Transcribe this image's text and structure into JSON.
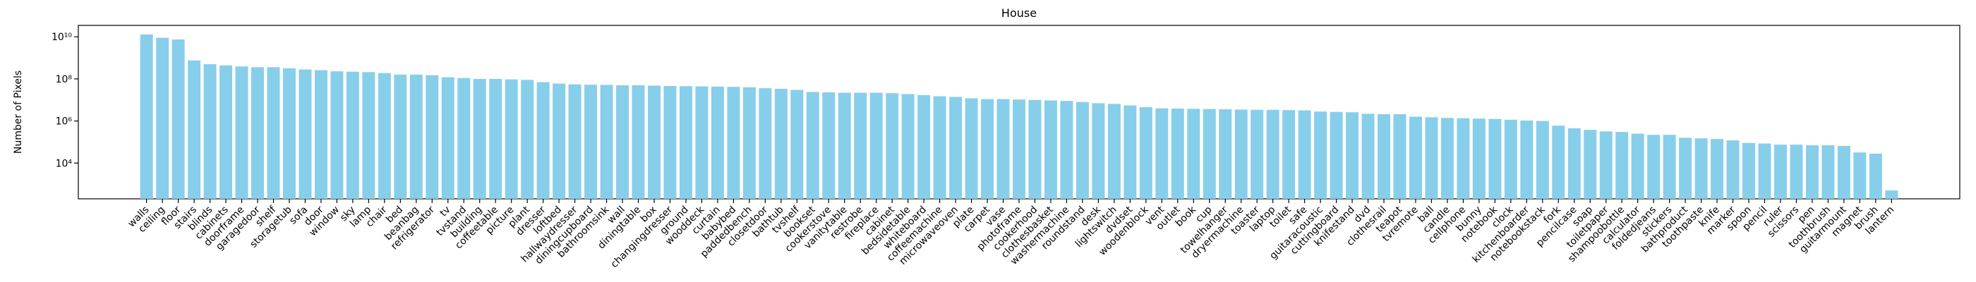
{
  "chart_data": {
    "type": "bar",
    "title": "House",
    "ylabel": "Number of Pixels",
    "categories": [
      "walls",
      "ceiling",
      "floor",
      "stairs",
      "blinds",
      "cabinets",
      "doorframe",
      "garagedoor",
      "shelf",
      "storagetub",
      "sofa",
      "door",
      "window",
      "sky",
      "lamp",
      "chair",
      "bed",
      "beanbag",
      "refrigerator",
      "tv",
      "tvstand",
      "building",
      "coffeetable",
      "picture",
      "plant",
      "dresser",
      "loftbed",
      "hallwaydresser",
      "diningcupboard",
      "bathroomsink",
      "wall",
      "diningtable",
      "box",
      "changingdresser",
      "ground",
      "wooddeck",
      "curtain",
      "babybed",
      "paddedbench",
      "closetdoor",
      "bathtub",
      "tvshelf",
      "bookset",
      "cookerstove",
      "vanitytable",
      "restrobe",
      "fireplace",
      "cabinet",
      "bedsidetable",
      "whiteboard",
      "coffeemachine",
      "microwaveoven",
      "plate",
      "carpet",
      "vase",
      "photoframe",
      "cookerhood",
      "clothesbasket",
      "washermachine",
      "roundstand",
      "desk",
      "lightswitch",
      "dvdset",
      "woodenblock",
      "vent",
      "outlet",
      "book",
      "cup",
      "towelhanger",
      "dryermachine",
      "toaster",
      "laptop",
      "toilet",
      "safe",
      "guitaracoustic",
      "cuttingboard",
      "knifestand",
      "dvd",
      "clothesrail",
      "teapot",
      "tvremote",
      "ball",
      "candle",
      "cellphone",
      "bunny",
      "notebook",
      "clock",
      "kitchenboarder",
      "notebookstack",
      "fork",
      "pencilcase",
      "soap",
      "toiletpaper",
      "shampoobottle",
      "calculator",
      "foldedjeans",
      "stickers",
      "bathproduct",
      "toothpaste",
      "knife",
      "marker",
      "spoon",
      "pencil",
      "ruler",
      "scissors",
      "pen",
      "toothbrush",
      "guitarmount",
      "magnet",
      "brush",
      "lantern"
    ],
    "values": [
      13000000000,
      9000000000,
      7500000000,
      760000000,
      500000000,
      440000000,
      390000000,
      360000000,
      360000000,
      320000000,
      280000000,
      260000000,
      230000000,
      220000000,
      210000000,
      190000000,
      160000000,
      160000000,
      150000000,
      120000000,
      110000000,
      100000000,
      100000000,
      95000000,
      90000000,
      70000000,
      60000000,
      55000000,
      53000000,
      52000000,
      50000000,
      50000000,
      48000000,
      46000000,
      45000000,
      44000000,
      43000000,
      42000000,
      40000000,
      36000000,
      34000000,
      30000000,
      24000000,
      23000000,
      22000000,
      22000000,
      22000000,
      21000000,
      19000000,
      17000000,
      15000000,
      14000000,
      12000000,
      11000000,
      11000000,
      10500000,
      10000000,
      9500000,
      9000000,
      8000000,
      7000000,
      6500000,
      5500000,
      4500000,
      4000000,
      3900000,
      3800000,
      3700000,
      3600000,
      3500000,
      3400000,
      3400000,
      3300000,
      3200000,
      2800000,
      2700000,
      2600000,
      2200000,
      2100000,
      2100000,
      1600000,
      1500000,
      1400000,
      1350000,
      1300000,
      1250000,
      1150000,
      1050000,
      1000000,
      600000,
      450000,
      380000,
      320000,
      300000,
      250000,
      220000,
      220000,
      160000,
      150000,
      140000,
      120000,
      90000,
      85000,
      75000,
      75000,
      70000,
      70000,
      65000,
      32000,
      28000,
      500
    ],
    "color": "#87ceeb",
    "log_scale": true,
    "ylim": [
      200,
      35000000000
    ],
    "yticks": [
      {
        "value": 10000,
        "label": "10⁴"
      },
      {
        "value": 1000000,
        "label": "10⁶"
      },
      {
        "value": 100000000,
        "label": "10⁸"
      },
      {
        "value": 10000000000,
        "label": "10¹⁰"
      }
    ]
  }
}
